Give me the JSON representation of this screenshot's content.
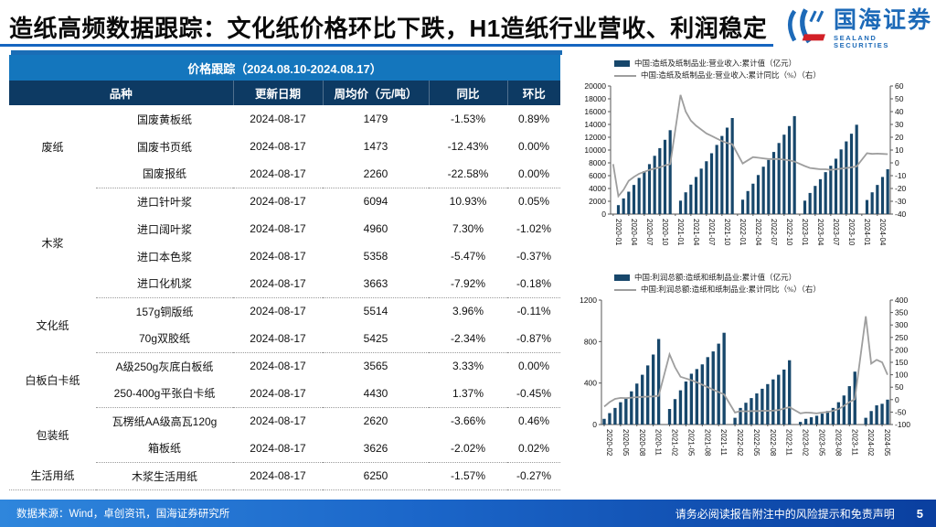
{
  "header": {
    "title": "造纸高频数据跟踪：文化纸价格环比下跌，H1造纸行业营收、利润稳定",
    "logo": {
      "cn": "国海证券",
      "en": "SEALAND SECURITIES",
      "blue": "#1d6ab8",
      "red": "#d22027"
    }
  },
  "table": {
    "title": "价格跟踪（2024.08.10-2024.08.17）",
    "columns": [
      "品种",
      "更新日期",
      "周均价（元/吨）",
      "同比",
      "环比"
    ],
    "groups": [
      {
        "category": "废纸",
        "rows": [
          {
            "item": "国废黄板纸",
            "date": "2024-08-17",
            "price": "1479",
            "yoy": "-1.53%",
            "mom": "0.89%"
          },
          {
            "item": "国废书页纸",
            "date": "2024-08-17",
            "price": "1473",
            "yoy": "-12.43%",
            "mom": "0.00%"
          },
          {
            "item": "国废报纸",
            "date": "2024-08-17",
            "price": "2260",
            "yoy": "-22.58%",
            "mom": "0.00%"
          }
        ]
      },
      {
        "category": "木浆",
        "rows": [
          {
            "item": "进口针叶浆",
            "date": "2024-08-17",
            "price": "6094",
            "yoy": "10.93%",
            "mom": "0.05%"
          },
          {
            "item": "进口阔叶浆",
            "date": "2024-08-17",
            "price": "4960",
            "yoy": "7.30%",
            "mom": "-1.02%"
          },
          {
            "item": "进口本色浆",
            "date": "2024-08-17",
            "price": "5358",
            "yoy": "-5.47%",
            "mom": "-0.37%"
          },
          {
            "item": "进口化机浆",
            "date": "2024-08-17",
            "price": "3663",
            "yoy": "-7.92%",
            "mom": "-0.18%"
          }
        ]
      },
      {
        "category": "文化纸",
        "rows": [
          {
            "item": "157g铜版纸",
            "date": "2024-08-17",
            "price": "5514",
            "yoy": "3.96%",
            "mom": "-0.11%"
          },
          {
            "item": "70g双胶纸",
            "date": "2024-08-17",
            "price": "5425",
            "yoy": "-2.34%",
            "mom": "-0.87%"
          }
        ]
      },
      {
        "category": "白板白卡纸",
        "rows": [
          {
            "item": "A级250g灰底白板纸",
            "date": "2024-08-17",
            "price": "3565",
            "yoy": "3.33%",
            "mom": "0.00%"
          },
          {
            "item": "250-400g平张白卡纸",
            "date": "2024-08-17",
            "price": "4430",
            "yoy": "1.37%",
            "mom": "-0.45%"
          }
        ]
      },
      {
        "category": "包装纸",
        "rows": [
          {
            "item": "瓦楞纸AA级高瓦120g",
            "date": "2024-08-17",
            "price": "2620",
            "yoy": "-3.66%",
            "mom": "0.46%"
          },
          {
            "item": "箱板纸",
            "date": "2024-08-17",
            "price": "3626",
            "yoy": "-2.02%",
            "mom": "0.02%"
          }
        ]
      },
      {
        "category": "生活用纸",
        "rows": [
          {
            "item": "木浆生活用纸",
            "date": "2024-08-17",
            "price": "6250",
            "yoy": "-1.57%",
            "mom": "-0.27%"
          }
        ]
      }
    ]
  },
  "chart_data": [
    {
      "type": "bar+line",
      "x_start": "2020-01",
      "x_tick_labels": [
        "2020-01",
        "2020-04",
        "2020-07",
        "2020-10",
        "2021-01",
        "2021-04",
        "2021-07",
        "2021-10",
        "2022-01",
        "2022-04",
        "2022-07",
        "2022-10",
        "2023-01",
        "2023-04",
        "2023-07",
        "2023-10",
        "2024-01",
        "2024-04"
      ],
      "left_axis": {
        "min": 0,
        "max": 20000,
        "step": 2000
      },
      "right_axis": {
        "min": -40,
        "max": 60,
        "step": 10
      },
      "legend_position": "top",
      "grid": false,
      "series": [
        {
          "name": "中国:造纸及纸制品业:营业收入:累计值（亿元）",
          "type": "bar",
          "axis": "left",
          "color": "#17476b",
          "values": [
            null,
            1400,
            2450,
            3500,
            4550,
            5650,
            6700,
            7800,
            9100,
            10300,
            11600,
            13100,
            null,
            2100,
            3400,
            4600,
            5800,
            7100,
            8250,
            9500,
            10800,
            12200,
            13500,
            15000,
            null,
            2250,
            3600,
            4750,
            6100,
            7400,
            8450,
            9700,
            11100,
            12400,
            13750,
            15300,
            null,
            2100,
            3300,
            4400,
            5450,
            6550,
            7550,
            8650,
            10100,
            11350,
            12550,
            13950,
            null,
            2200,
            3400,
            4550,
            5800,
            7000
          ]
        },
        {
          "name": "中国:造纸及纸制品业:营业收入:累计同比（%）（右）",
          "type": "line",
          "axis": "right",
          "color": "#9e9e9e",
          "values": [
            -1,
            -26,
            -21,
            -14,
            -11,
            -8.5,
            -7,
            -5.5,
            -4.5,
            -3.5,
            -2,
            -1,
            null,
            53,
            40,
            33,
            29,
            26,
            23,
            21,
            19,
            17,
            15.5,
            14.5,
            null,
            -0.5,
            2,
            4.5,
            4,
            3.5,
            3,
            3,
            3,
            2.5,
            2,
            1,
            null,
            -2.5,
            -4,
            -4.5,
            -5,
            -5,
            -5.5,
            -5,
            -4.5,
            -4,
            -3.5,
            -2.7,
            null,
            7.5,
            7,
            7.2,
            7,
            6.8
          ]
        }
      ]
    },
    {
      "type": "bar+line",
      "x_start": "2020-02",
      "x_tick_labels": [
        "2020-02",
        "2020-05",
        "2020-08",
        "2020-11",
        "2021-02",
        "2021-05",
        "2021-08",
        "2021-11",
        "2022-02",
        "2022-05",
        "2022-08",
        "2022-11",
        "2023-02",
        "2023-05",
        "2023-08",
        "2023-11",
        "2024-02",
        "2024-05"
      ],
      "left_axis": {
        "min": 0,
        "max": 1200,
        "step": 400
      },
      "right_axis": {
        "min": -100,
        "max": 400,
        "step": 50
      },
      "legend_position": "top",
      "grid": false,
      "series": [
        {
          "name": "中国:利润总额:造纸和纸制品业:累计值（亿元）",
          "type": "bar",
          "axis": "left",
          "color": "#17476b",
          "values": [
            55,
            110,
            160,
            215,
            250,
            320,
            395,
            480,
            570,
            675,
            825,
            null,
            150,
            245,
            330,
            415,
            490,
            535,
            580,
            650,
            705,
            780,
            885,
            null,
            65,
            160,
            210,
            255,
            300,
            345,
            390,
            435,
            480,
            530,
            620,
            null,
            25,
            55,
            70,
            85,
            105,
            130,
            160,
            215,
            280,
            370,
            510,
            null,
            65,
            130,
            185,
            200,
            240
          ]
        },
        {
          "name": "中国:利润总额:造纸和纸制品业:累计同比（%）（右）",
          "type": "line",
          "axis": "right",
          "color": "#9e9e9e",
          "values": [
            -28,
            -10,
            3,
            7,
            6,
            8,
            10,
            11,
            12,
            13,
            15,
            null,
            182,
            130,
            92,
            85,
            78,
            70,
            60,
            50,
            40,
            30,
            21,
            null,
            -52,
            -46,
            -47,
            -46,
            -46,
            -45,
            -45,
            -44,
            -42,
            -36,
            -30,
            null,
            -55,
            -52,
            -53,
            -55,
            -52,
            -50,
            -45,
            -38,
            -25,
            -10,
            2,
            null,
            335,
            145,
            160,
            150,
            100
          ]
        }
      ]
    }
  ],
  "footer": {
    "source": "数据来源：Wind，卓创资讯，国海证券研究所",
    "disclaimer": "请务必阅读报告附注中的风险提示和免责声明",
    "page": "5"
  }
}
